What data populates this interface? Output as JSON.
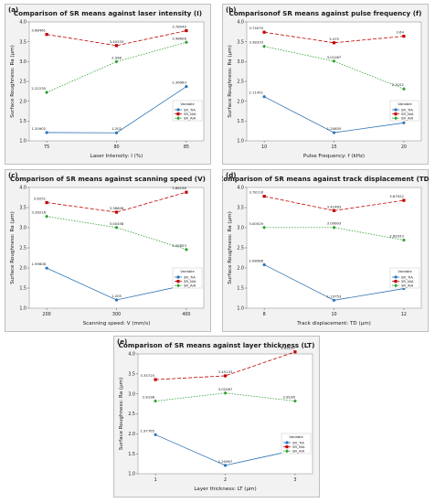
{
  "chart_data": [
    {
      "type": "line",
      "tag": "(a)",
      "title": "Comparison of SR means against laser intensity (I)",
      "xlabel": "Laser Intensity: I (%)",
      "ylabel": "Surface Roughness: Ra (µm)",
      "x": [
        75,
        80,
        85
      ],
      "xticks": [
        "75",
        "80",
        "85"
      ],
      "ylim": [
        1.0,
        4.0
      ],
      "yticks": [
        "1.0",
        "1.5",
        "2.0",
        "2.5",
        "3.0",
        "3.5",
        "4.0"
      ],
      "legend_title": "Variable",
      "series": [
        {
          "name": "SR_TiA",
          "values": [
            1.20902,
            1.202,
            2.36963
          ],
          "labels": [
            "1.20902",
            "1.202",
            "2.36963"
          ],
          "color": "#2e75b6",
          "dash": "",
          "marker": "circle"
        },
        {
          "name": "SR_NiA",
          "values": [
            3.68461,
            3.40333,
            3.78049
          ],
          "labels": [
            "3.68461",
            "3.40333",
            "3.78049"
          ],
          "color": "#c00000",
          "dash": "4,2",
          "marker": "square"
        },
        {
          "name": "SR_AlA",
          "values": [
            2.22235,
            2.998,
            3.48608
          ],
          "labels": [
            "2.22235",
            "2.998",
            "3.48608"
          ],
          "color": "#2e9e2e",
          "dash": "1.5,1.5",
          "marker": "diamond"
        }
      ]
    },
    {
      "type": "line",
      "tag": "(b)",
      "title": "Comparisonof SR means against pulse frequency (f)",
      "xlabel": "Pulse Frequency: f (kHz)",
      "ylabel": "Surface Roughness: Ra (µm)",
      "x": [
        10,
        15,
        20
      ],
      "xticks": [
        "10",
        "15",
        "20"
      ],
      "ylim": [
        1.0,
        4.0
      ],
      "yticks": [
        "1.0",
        "1.5",
        "2.0",
        "2.5",
        "3.0",
        "3.5",
        "4.0"
      ],
      "legend_title": "Variable",
      "series": [
        {
          "name": "SR_TiA",
          "values": [
            2.11451,
            1.20655,
            1.45451
          ],
          "labels": [
            "2.11451",
            "1.20655",
            "1.45451"
          ],
          "color": "#2e75b6",
          "dash": "",
          "marker": "circle"
        },
        {
          "name": "SR_NiA",
          "values": [
            3.7407,
            3.475,
            3.64
          ],
          "labels": [
            "3.74070",
            "3.475",
            "3.64"
          ],
          "color": "#c00000",
          "dash": "4,2",
          "marker": "square"
        },
        {
          "name": "SR_AlA",
          "values": [
            3.38333,
            3.01087,
            2.3102
          ],
          "labels": [
            "3.38333",
            "3.01087",
            "2.3102"
          ],
          "color": "#2e9e2e",
          "dash": "1.5,1.5",
          "marker": "diamond"
        }
      ]
    },
    {
      "type": "line",
      "tag": "(c)",
      "title": "Comparison of SR means against scanning speed (V)",
      "xlabel": "Scanning speed: V (mm/s)",
      "ylabel": "Surface Roughness: Ra (µm)",
      "x": [
        200,
        300,
        400
      ],
      "xticks": [
        "200",
        "300",
        "400"
      ],
      "ylim": [
        1.0,
        4.0
      ],
      "yticks": [
        "1.0",
        "1.5",
        "2.0",
        "2.5",
        "3.0",
        "3.5",
        "4.0"
      ],
      "legend_title": "Variable",
      "series": [
        {
          "name": "SR_TiA",
          "values": [
            1.99608,
            1.205,
            1.57806
          ],
          "labels": [
            "1.99608",
            "1.205",
            "1.57806"
          ],
          "color": "#2e75b6",
          "dash": "",
          "marker": "circle"
        },
        {
          "name": "SR_NiA",
          "values": [
            3.6251,
            3.38608,
            3.88196
          ],
          "labels": [
            "3.6251",
            "3.38608",
            "3.88196"
          ],
          "color": "#c00000",
          "dash": "4,2",
          "marker": "square"
        },
        {
          "name": "SR_AlA",
          "values": [
            3.28216,
            3.00458,
            2.45853
          ],
          "labels": [
            "3.28216",
            "3.00458",
            "2.45853"
          ],
          "color": "#2e9e2e",
          "dash": "1.5,1.5",
          "marker": "diamond"
        }
      ]
    },
    {
      "type": "line",
      "tag": "(d)",
      "title": "Comparison of SR means against track displacement (TD)",
      "xlabel": "Track displacement: TD (µm)",
      "ylabel": "Surface Roughness: Ra (µm)",
      "x": [
        8,
        10,
        12
      ],
      "xticks": [
        "8",
        "10",
        "12"
      ],
      "ylim": [
        1.0,
        4.0
      ],
      "yticks": [
        "1.0",
        "1.5",
        "2.0",
        "2.5",
        "3.0",
        "3.5",
        "4.0"
      ],
      "legend_title": "Variable",
      "series": [
        {
          "name": "SR_TiA",
          "values": [
            2.08088,
            1.19753,
            1.48725
          ],
          "labels": [
            "2.08088",
            "1.19753",
            "1.48725"
          ],
          "color": "#2e75b6",
          "dash": "",
          "marker": "circle"
        },
        {
          "name": "SR_NiA",
          "values": [
            3.78118,
            3.42463,
            3.67922
          ],
          "labels": [
            "3.78118",
            "3.42463",
            "3.67922"
          ],
          "color": "#c00000",
          "dash": "4,2",
          "marker": "square"
        },
        {
          "name": "SR_AlA",
          "values": [
            3.00529,
            3.00603,
            2.69333
          ],
          "labels": [
            "3.00529",
            "3.00603",
            "2.69333"
          ],
          "color": "#2e9e2e",
          "dash": "1.5,1.5",
          "marker": "diamond"
        }
      ]
    },
    {
      "type": "line",
      "tag": "(e)",
      "title": "Comparison of SR means against layer thickness (LT)",
      "xlabel": "Layer thickness: LT (µm)",
      "ylabel": "Surface Roughness: Ra (µm)",
      "x": [
        1,
        2,
        3
      ],
      "xticks": [
        "1",
        "2",
        "3"
      ],
      "ylim": [
        1.0,
        4.0
      ],
      "yticks": [
        "1.0",
        "1.5",
        "2.0",
        "2.5",
        "3.0",
        "3.5",
        "4.0"
      ],
      "legend_title": "Variable",
      "series": [
        {
          "name": "SR_TiA",
          "values": [
            1.97765,
            1.20967,
            1.59098
          ],
          "labels": [
            "1.97765",
            "1.20967",
            "1.59098"
          ],
          "color": "#2e75b6",
          "dash": "",
          "marker": "circle"
        },
        {
          "name": "SR_NiA",
          "values": [
            3.35725,
            3.45133,
            4.05137
          ],
          "labels": [
            "3.35725",
            "3.45133",
            "4.05137"
          ],
          "color": "#c00000",
          "dash": "4,2",
          "marker": "square"
        },
        {
          "name": "SR_AlA",
          "values": [
            2.8198,
            3.02067,
            2.8196
          ],
          "labels": [
            "2.8198",
            "3.02067",
            "2.8196"
          ],
          "color": "#2e9e2e",
          "dash": "1.5,1.5",
          "marker": "diamond"
        }
      ]
    }
  ]
}
